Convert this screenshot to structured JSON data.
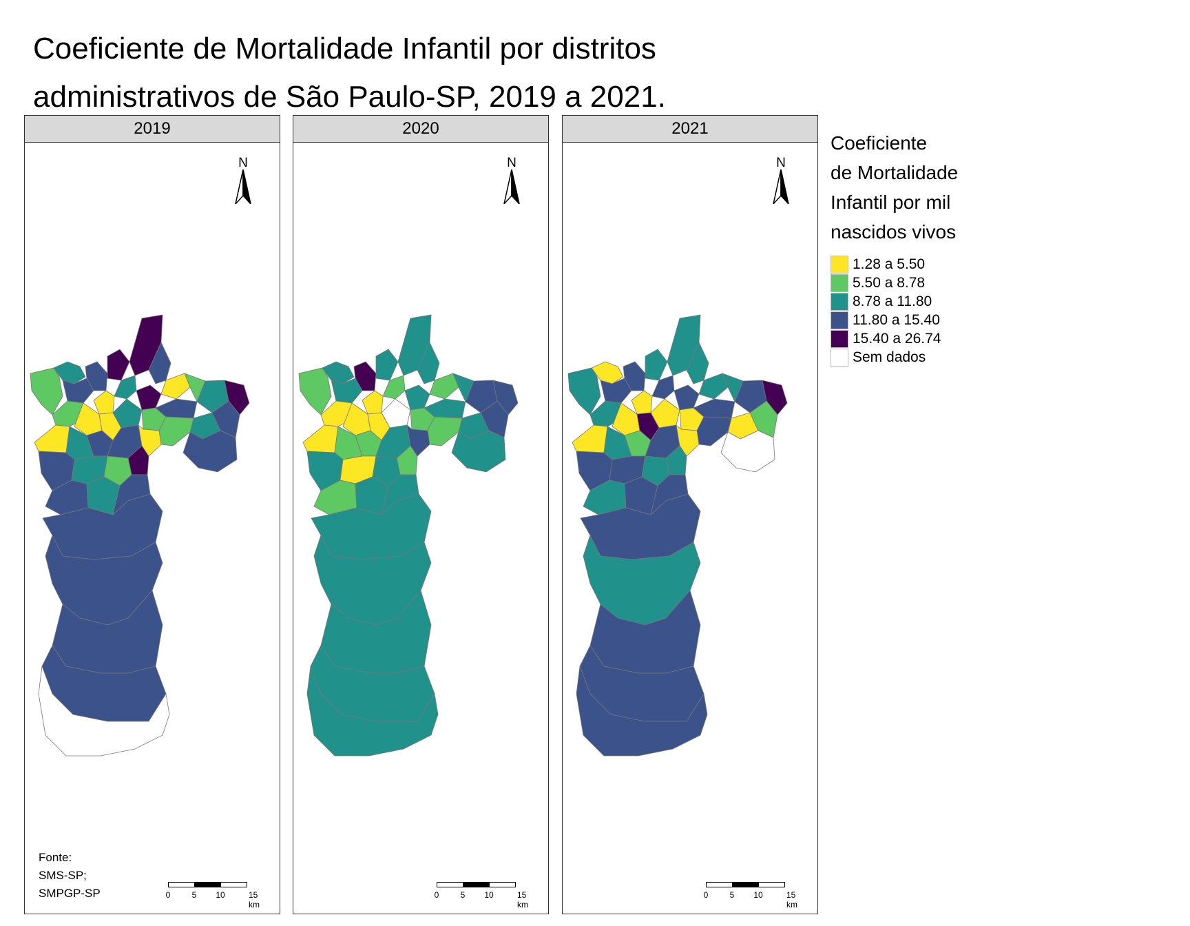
{
  "title_line1": "Coeficiente de Mortalidade Infantil por distritos",
  "title_line2": "administrativos de São Paulo-SP, 2019 a 2021.",
  "panels": [
    {
      "year": "2019",
      "district_classes": [
        1,
        2,
        3,
        3,
        4,
        4,
        2,
        0,
        4,
        3,
        1,
        0,
        2,
        0,
        1,
        0,
        3,
        2,
        1,
        4,
        2,
        3,
        1,
        0,
        2,
        3,
        3,
        0,
        3,
        4,
        3,
        2,
        1,
        3,
        2,
        3,
        3,
        3,
        3,
        3,
        5
      ]
    },
    {
      "year": "2020",
      "district_classes": [
        1,
        2,
        2,
        4,
        2,
        2,
        1,
        0,
        2,
        2,
        0,
        0,
        5,
        0,
        1,
        1,
        2,
        3,
        2,
        3,
        2,
        3,
        1,
        0,
        1,
        1,
        2,
        3,
        2,
        1,
        2,
        0,
        2,
        1,
        2,
        2,
        2,
        2,
        2,
        2,
        2
      ]
    },
    {
      "year": "2021",
      "district_classes": [
        2,
        0,
        3,
        3,
        2,
        2,
        3,
        0,
        3,
        2,
        2,
        0,
        0,
        4,
        0,
        2,
        3,
        3,
        2,
        4,
        0,
        1,
        3,
        0,
        2,
        1,
        3,
        0,
        5,
        2,
        3,
        3,
        2,
        2,
        3,
        3,
        3,
        2,
        3,
        3,
        3
      ]
    }
  ],
  "north_label": "N",
  "scale": {
    "ticks": [
      "0",
      "5",
      "10",
      "15 km"
    ]
  },
  "source": {
    "lines": [
      "Fonte:",
      "SMS-SP;",
      "SMPGP-SP"
    ]
  },
  "legend": {
    "title_lines": [
      "Coeficiente",
      "de Mortalidade",
      "Infantil por mil",
      "nascidos vivos"
    ],
    "items": [
      {
        "label": "1.28 a 5.50",
        "color": "#fde725"
      },
      {
        "label": "5.50 a 8.78",
        "color": "#5ec962"
      },
      {
        "label": "8.78 a 11.80",
        "color": "#21918c"
      },
      {
        "label": "11.80 a 15.40",
        "color": "#3b528b"
      },
      {
        "label": "15.40 a 26.74",
        "color": "#440154"
      },
      {
        "label": "Sem dados",
        "color": "#ffffff"
      }
    ]
  }
}
